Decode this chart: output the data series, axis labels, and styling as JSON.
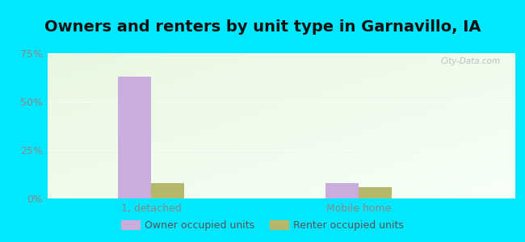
{
  "title": "Owners and renters by unit type in Garnavillo, IA",
  "categories": [
    "1, detached",
    "Mobile home"
  ],
  "owner_values": [
    63,
    8
  ],
  "renter_values": [
    8,
    6
  ],
  "owner_color": "#c9aedd",
  "renter_color": "#b5b86a",
  "ylim": [
    0,
    75
  ],
  "yticks": [
    0,
    25,
    50,
    75
  ],
  "yticklabels": [
    "0%",
    "25%",
    "50%",
    "75%"
  ],
  "bar_width": 0.32,
  "group_positions": [
    1.0,
    3.0
  ],
  "outer_bg": "#00e8ff",
  "title_fontsize": 14,
  "legend_labels": [
    "Owner occupied units",
    "Renter occupied units"
  ],
  "watermark": "City-Data.com",
  "tick_color": "#888888",
  "grid_color": "#ffffff"
}
